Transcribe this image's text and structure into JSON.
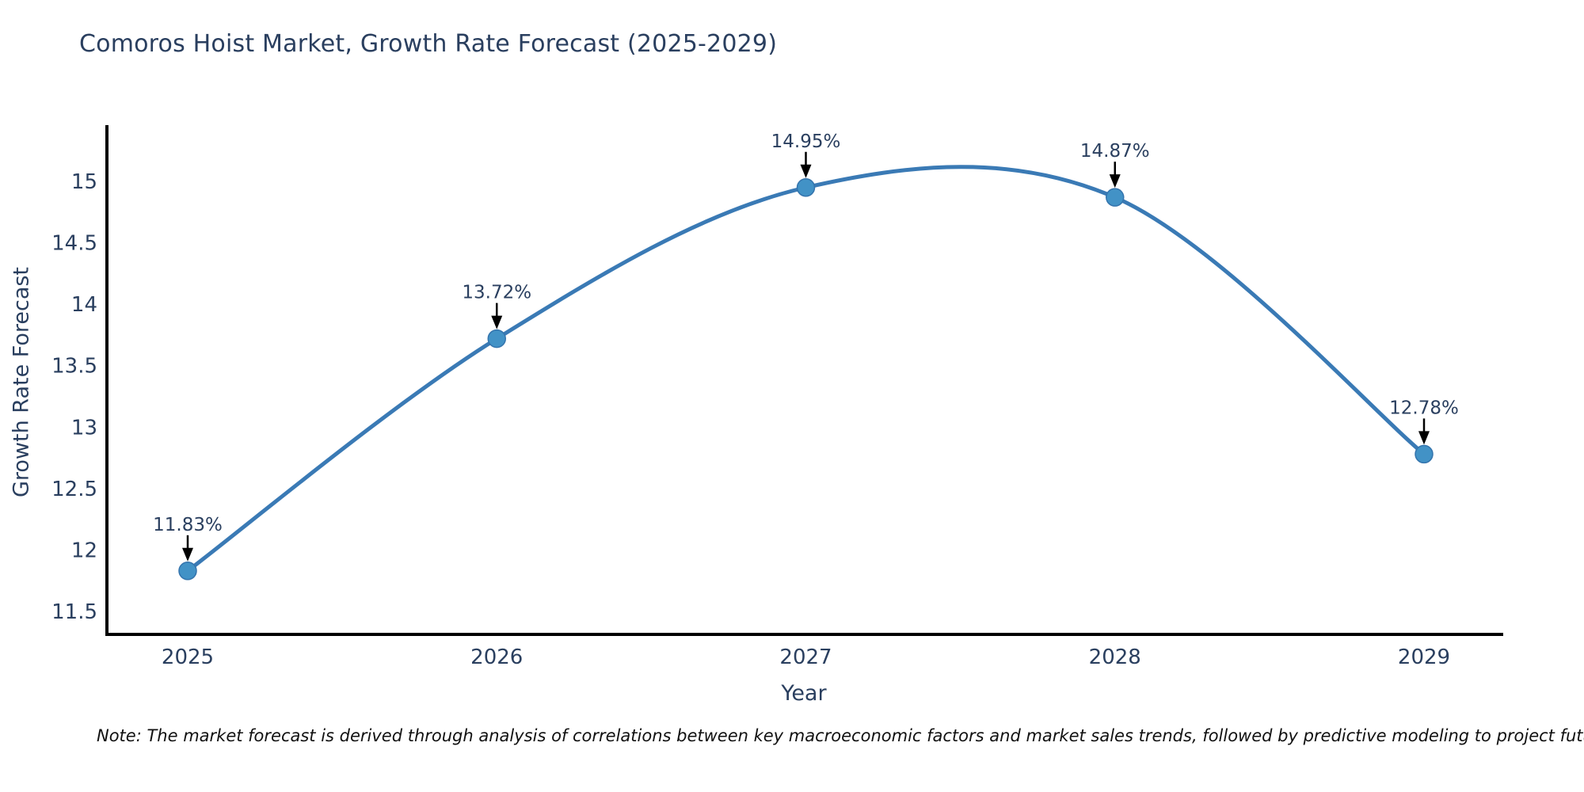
{
  "title": "Comoros Hoist Market, Growth Rate Forecast (2025-2029)",
  "note": "Note: The market forecast is derived through analysis of correlations between key macroeconomic factors and market sales trends, followed by predictive modeling to project future sal",
  "chart_data": {
    "type": "line",
    "title": "Comoros Hoist Market, Growth Rate Forecast (2025-2029)",
    "xlabel": "Year",
    "ylabel": "Growth Rate Forecast",
    "x": [
      2025,
      2026,
      2027,
      2028,
      2029
    ],
    "y": [
      11.83,
      13.72,
      14.95,
      14.87,
      12.78
    ],
    "point_labels": [
      "11.83%",
      "13.72%",
      "14.95%",
      "14.87%",
      "12.78%"
    ],
    "xticklabels": [
      "2025",
      "2026",
      "2027",
      "2028",
      "2029"
    ],
    "yticks": [
      11.5,
      12,
      12.5,
      13,
      13.5,
      14,
      14.5,
      15
    ],
    "ylim": [
      11.3,
      15.45
    ],
    "xlim": [
      2024.74,
      2029.26
    ],
    "grid": false,
    "legend": false,
    "line_shape": "spline",
    "colors": {
      "line": "#3a7ab5",
      "marker": "#4292c6",
      "marker_edge": "#3474ad",
      "axis": "#000000",
      "tick_text": "#2a3f5f",
      "annotation_text": "#2a3f5f",
      "annotation_arrow": "#000000",
      "title_text": "#2a3f5f",
      "background": "#ffffff"
    }
  }
}
